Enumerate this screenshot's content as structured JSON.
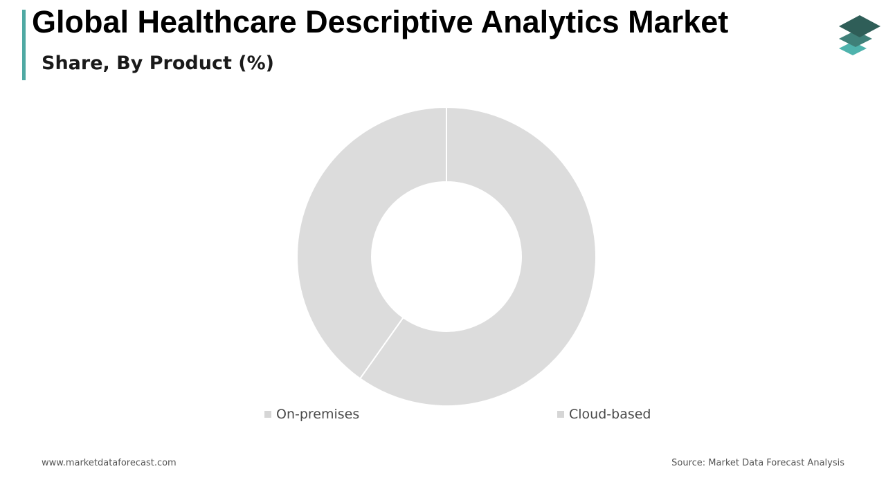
{
  "header": {
    "title": "Global Healthcare Descriptive Analytics Market",
    "subtitle": "Share, By Product (%)"
  },
  "footer": {
    "website": "www.marketdataforecast.com",
    "source": "Source: Market Data Forecast Analysis"
  },
  "colors": {
    "accent": "#4fa9a3",
    "slice_fill": "#dcdcdc",
    "slice_stroke": "#ffffff",
    "legend_swatch": "#d6d6d6",
    "logo_dark": "#2f5e58",
    "logo_mid": "#3f8079",
    "logo_light": "#4fb3ad"
  },
  "logo": {
    "icon": "stacked-layers-icon"
  },
  "chart_data": {
    "type": "pie",
    "variant": "donut",
    "title": "",
    "legend_position": "bottom",
    "categories": [
      "On-premises",
      "Cloud-based"
    ],
    "values": [
      40.2,
      59.8
    ],
    "start_angle_deg": 0,
    "direction": "counter-clockwise",
    "inner_radius_ratio": 0.5
  }
}
